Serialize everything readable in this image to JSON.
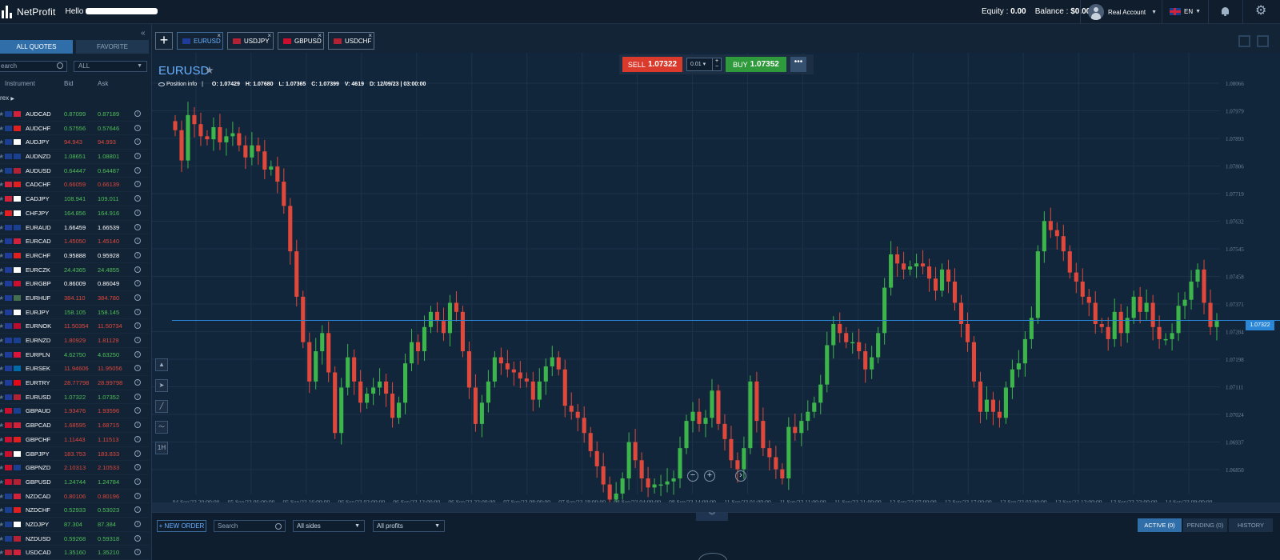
{
  "app": {
    "name": "NetProfit",
    "greeting": "Hello"
  },
  "header": {
    "equity_label": "Equity :",
    "equity_value": "0.00",
    "balance_label": "Balance :",
    "balance_value": "$0.00",
    "account": "Real Account",
    "language": "EN"
  },
  "sidebar": {
    "tabs": [
      "ALL QUOTES",
      "FAVORITE"
    ],
    "search_placeholder": "earch",
    "filter": "ALL",
    "columns": {
      "instrument": "Instrument",
      "bid": "Bid",
      "ask": "Ask"
    },
    "group": "rex",
    "quotes": [
      {
        "sym": "AUDCAD",
        "bid": "0.87099",
        "ask": "0.87189",
        "dir": "up",
        "f1": "#1b3f8f",
        "f2": "#d0223a"
      },
      {
        "sym": "AUDCHF",
        "bid": "0.57556",
        "ask": "0.57646",
        "dir": "up",
        "f1": "#1b3f8f",
        "f2": "#e02020"
      },
      {
        "sym": "AUDJPY",
        "bid": "94.943",
        "ask": "94.993",
        "dir": "down",
        "f1": "#1b3f8f",
        "f2": "#ffffff"
      },
      {
        "sym": "AUDNZD",
        "bid": "1.08651",
        "ask": "1.08801",
        "dir": "up",
        "f1": "#1b3f8f",
        "f2": "#1b3f8f"
      },
      {
        "sym": "AUDUSD",
        "bid": "0.64447",
        "ask": "0.64487",
        "dir": "up",
        "f1": "#1b3f8f",
        "f2": "#b22234"
      },
      {
        "sym": "CADCHF",
        "bid": "0.66059",
        "ask": "0.66139",
        "dir": "down",
        "f1": "#d0223a",
        "f2": "#e02020"
      },
      {
        "sym": "CADJPY",
        "bid": "108.941",
        "ask": "109.011",
        "dir": "up",
        "f1": "#d0223a",
        "f2": "#ffffff"
      },
      {
        "sym": "CHFJPY",
        "bid": "164.856",
        "ask": "164.916",
        "dir": "up",
        "f1": "#e02020",
        "f2": "#ffffff"
      },
      {
        "sym": "EURAUD",
        "bid": "1.66459",
        "ask": "1.66539",
        "dir": "flat",
        "f1": "#1f3c99",
        "f2": "#1b3f8f"
      },
      {
        "sym": "EURCAD",
        "bid": "1.45050",
        "ask": "1.45140",
        "dir": "down",
        "f1": "#1f3c99",
        "f2": "#d0223a"
      },
      {
        "sym": "EURCHF",
        "bid": "0.95888",
        "ask": "0.95928",
        "dir": "flat",
        "f1": "#1f3c99",
        "f2": "#e02020"
      },
      {
        "sym": "EURCZK",
        "bid": "24.4365",
        "ask": "24.4855",
        "dir": "up",
        "f1": "#1f3c99",
        "f2": "#ffffff"
      },
      {
        "sym": "EURGBP",
        "bid": "0.86009",
        "ask": "0.86049",
        "dir": "flat",
        "f1": "#1f3c99",
        "f2": "#c8102e"
      },
      {
        "sym": "EURHUF",
        "bid": "384.110",
        "ask": "384.780",
        "dir": "down",
        "f1": "#1f3c99",
        "f2": "#436f4d"
      },
      {
        "sym": "EURJPY",
        "bid": "158.105",
        "ask": "158.145",
        "dir": "up",
        "f1": "#1f3c99",
        "f2": "#ffffff"
      },
      {
        "sym": "EURNOK",
        "bid": "11.50354",
        "ask": "11.50734",
        "dir": "down",
        "f1": "#1f3c99",
        "f2": "#ba0c2f"
      },
      {
        "sym": "EURNZD",
        "bid": "1.80929",
        "ask": "1.81129",
        "dir": "down",
        "f1": "#1f3c99",
        "f2": "#1b3f8f"
      },
      {
        "sym": "EURPLN",
        "bid": "4.62750",
        "ask": "4.63250",
        "dir": "up",
        "f1": "#1f3c99",
        "f2": "#dc143c"
      },
      {
        "sym": "EURSEK",
        "bid": "11.94606",
        "ask": "11.95056",
        "dir": "down",
        "f1": "#1f3c99",
        "f2": "#006aa7"
      },
      {
        "sym": "EURTRY",
        "bid": "28.77798",
        "ask": "28.99798",
        "dir": "down",
        "f1": "#1f3c99",
        "f2": "#e30a17"
      },
      {
        "sym": "EURUSD",
        "bid": "1.07322",
        "ask": "1.07352",
        "dir": "up",
        "f1": "#1f3c99",
        "f2": "#b22234"
      },
      {
        "sym": "GBPAUD",
        "bid": "1.93476",
        "ask": "1.93596",
        "dir": "down",
        "f1": "#c8102e",
        "f2": "#1b3f8f"
      },
      {
        "sym": "GBPCAD",
        "bid": "1.68595",
        "ask": "1.68715",
        "dir": "down",
        "f1": "#c8102e",
        "f2": "#d0223a"
      },
      {
        "sym": "GBPCHF",
        "bid": "1.11443",
        "ask": "1.11513",
        "dir": "down",
        "f1": "#c8102e",
        "f2": "#e02020"
      },
      {
        "sym": "GBPJPY",
        "bid": "183.753",
        "ask": "183.833",
        "dir": "down",
        "f1": "#c8102e",
        "f2": "#ffffff"
      },
      {
        "sym": "GBPNZD",
        "bid": "2.10313",
        "ask": "2.10533",
        "dir": "down",
        "f1": "#c8102e",
        "f2": "#1b3f8f"
      },
      {
        "sym": "GBPUSD",
        "bid": "1.24744",
        "ask": "1.24784",
        "dir": "up",
        "f1": "#c8102e",
        "f2": "#b22234"
      },
      {
        "sym": "NZDCAD",
        "bid": "0.80106",
        "ask": "0.80196",
        "dir": "down",
        "f1": "#1b3f8f",
        "f2": "#d0223a"
      },
      {
        "sym": "NZDCHF",
        "bid": "0.52933",
        "ask": "0.53023",
        "dir": "up",
        "f1": "#1b3f8f",
        "f2": "#e02020"
      },
      {
        "sym": "NZDJPY",
        "bid": "87.304",
        "ask": "87.384",
        "dir": "up",
        "f1": "#1b3f8f",
        "f2": "#ffffff"
      },
      {
        "sym": "NZDUSD",
        "bid": "0.59268",
        "ask": "0.59318",
        "dir": "up",
        "f1": "#1b3f8f",
        "f2": "#b22234"
      },
      {
        "sym": "USDCAD",
        "bid": "1.35160",
        "ask": "1.35210",
        "dir": "up",
        "f1": "#b22234",
        "f2": "#d0223a"
      }
    ]
  },
  "chart_tabs": [
    {
      "label": "EURUSD",
      "active": true,
      "flag": "#1f3c99"
    },
    {
      "label": "USDJPY",
      "active": false,
      "flag": "#b22234"
    },
    {
      "label": "GBPUSD",
      "active": false,
      "flag": "#c8102e"
    },
    {
      "label": "USDCHF",
      "active": false,
      "flag": "#b22234"
    }
  ],
  "chart": {
    "symbol": "EURUSD",
    "position_info": "Position info",
    "ohlc": {
      "o": "O: 1.07429",
      "h": "H: 1.07680",
      "l": "L: 1.07365",
      "c": "C: 1.07399",
      "v": "V: 4619",
      "d": "D: 12/09/23 | 03:00:00"
    },
    "trade": {
      "sell_label": "SELL",
      "sell_price": "1.07322",
      "qty": "0.01",
      "buy_label": "BUY",
      "buy_price": "1.07352",
      "more": "•••"
    },
    "tools": [
      "area-chart-tool",
      "navigate-tool",
      "trendline-tool",
      "indicator-tool",
      "timeframe-tool"
    ],
    "timeframe_label": "1H",
    "current_price_label": "1.07322",
    "zoom": [
      "−",
      "+",
      "›"
    ]
  },
  "chart_data": {
    "type": "candlestick",
    "symbol": "EURUSD",
    "ylim": [
      1.068,
      1.081
    ],
    "yticks": [
      "1.08066",
      "1.07979",
      "1.07893",
      "1.07806",
      "1.07719",
      "1.07632",
      "1.07545",
      "1.07458",
      "1.07371",
      "1.07284",
      "1.07198",
      "1.07111",
      "1.07024",
      "1.06937",
      "1.06850"
    ],
    "xticks": [
      "04 Sep/23 20:00:00",
      "05 Sep/23 06:00:00",
      "05 Sep/23 16:00:00",
      "06 Sep/23 02:00:00",
      "06 Sep/23 12:00:00",
      "06 Sep/23 22:00:00",
      "07 Sep/23 08:00:00",
      "07 Sep/23 18:00:00",
      "08 Sep/23 04:00:00",
      "08 Sep/23 14:00:00",
      "11 Sep/23 01:00:00",
      "11 Sep/23 11:00:00",
      "11 Sep/23 21:00:00",
      "12 Sep/23 07:00:00",
      "12 Sep/23 17:00:00",
      "13 Sep/23 03:00:00",
      "13 Sep/23 13:00:00",
      "13 Sep/23 23:00:00",
      "14 Sep/23 09:00:00"
    ],
    "current_price": 1.07322,
    "closes": [
      1.0795,
      1.0785,
      1.08,
      1.0797,
      1.0793,
      1.0792,
      1.0796,
      1.0791,
      1.0793,
      1.0794,
      1.079,
      1.0786,
      1.079,
      1.0788,
      1.0782,
      1.0783,
      1.0778,
      1.077,
      1.0755,
      1.074,
      1.0725,
      1.0712,
      1.0722,
      1.0728,
      1.0715,
      1.0695,
      1.071,
      1.072,
      1.0712,
      1.0705,
      1.0708,
      1.071,
      1.0712,
      1.0708,
      1.07,
      1.0705,
      1.0718,
      1.0725,
      1.0722,
      1.073,
      1.0735,
      1.0732,
      1.0728,
      1.0738,
      1.0735,
      1.0722,
      1.071,
      1.0698,
      1.0705,
      1.0712,
      1.072,
      1.0718,
      1.0716,
      1.0715,
      1.0713,
      1.0712,
      1.0706,
      1.0712,
      1.0717,
      1.072,
      1.0716,
      1.0704,
      1.0702,
      1.07,
      1.0695,
      1.0689,
      1.0684,
      1.0678,
      1.0673,
      1.0675,
      1.068,
      1.0692,
      1.0686,
      1.068,
      1.0677,
      1.0678,
      1.0678,
      1.0679,
      1.068,
      1.069,
      1.0699,
      1.0702,
      1.0698,
      1.07,
      1.0709,
      1.0698,
      1.0693,
      1.0686,
      1.0683,
      1.069,
      1.0712,
      1.0699,
      1.069,
      1.0687,
      1.0683,
      1.068,
      1.0697,
      1.0695,
      1.0699,
      1.0702,
      1.0705,
      1.0711,
      1.0724,
      1.0731,
      1.0728,
      1.0725,
      1.0725,
      1.0722,
      1.0716,
      1.072,
      1.0728,
      1.0743,
      1.0754,
      1.0751,
      1.0749,
      1.075,
      1.0751,
      1.075,
      1.0746,
      1.0742,
      1.0749,
      1.0745,
      1.0738,
      1.0731,
      1.0725,
      1.0712,
      1.0702,
      1.0706,
      1.0702,
      1.07,
      1.071,
      1.0716,
      1.0718,
      1.0726,
      1.0733,
      1.0755,
      1.0765,
      1.0762,
      1.076,
      1.0755,
      1.0748,
      1.0745,
      1.074,
      1.0738,
      1.0731,
      1.073,
      1.0726,
      1.0735,
      1.0728,
      1.0733,
      1.074,
      1.0735,
      1.0738,
      1.073,
      1.0726,
      1.0726,
      1.0728,
      1.0737,
      1.0739,
      1.0745,
      1.0749,
      1.0738,
      1.073,
      1.0732
    ]
  },
  "bottom": {
    "new_order": "+ NEW ORDER",
    "search_placeholder": "Search",
    "sides": "All sides",
    "profits": "All profits",
    "tabs": [
      "ACTIVE (0)",
      "PENDING (0)",
      "HISTORY"
    ]
  }
}
